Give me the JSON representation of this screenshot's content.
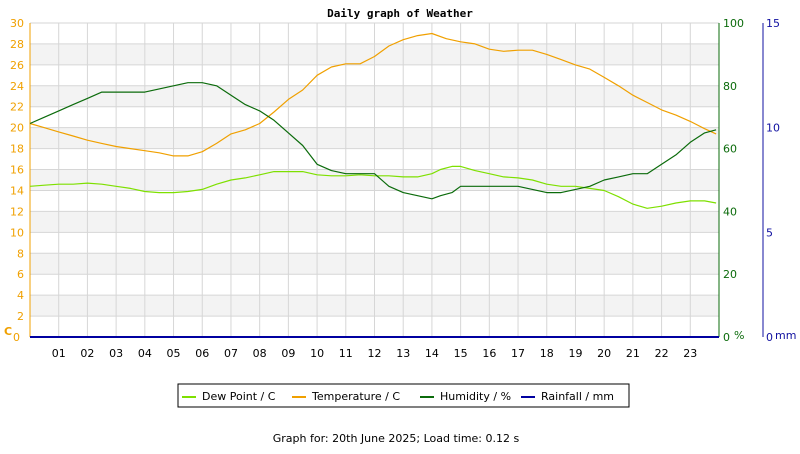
{
  "chart_data": {
    "type": "line",
    "title": "Daily graph of Weather",
    "footer": "Graph for: 20th June 2025; Load time: 0.12 s",
    "x_tick_labels": [
      "01",
      "02",
      "03",
      "04",
      "05",
      "06",
      "07",
      "08",
      "09",
      "10",
      "11",
      "12",
      "13",
      "14",
      "15",
      "16",
      "17",
      "18",
      "19",
      "20",
      "21",
      "22",
      "23"
    ],
    "xlim": [
      0,
      24
    ],
    "axes": {
      "left": {
        "unit_label": "C",
        "ticks": [
          0,
          2,
          4,
          6,
          8,
          10,
          12,
          14,
          16,
          18,
          20,
          22,
          24,
          26,
          28,
          30
        ],
        "ylim": [
          0,
          30
        ],
        "color": "#f0a000"
      },
      "humidity": {
        "unit_label": "%",
        "ticks": [
          0,
          20,
          40,
          60,
          80,
          100
        ],
        "ylim": [
          0,
          100
        ],
        "color": "#0b6b0b"
      },
      "rainfall": {
        "unit_label": "mm",
        "ticks": [
          0,
          5,
          10,
          15
        ],
        "ylim": [
          0,
          15
        ],
        "color": "#1010a0"
      }
    },
    "grid": true,
    "legend_position": "bottom-center",
    "series": [
      {
        "name": "Dew Point / C",
        "color": "#7ee000",
        "axis": "left",
        "x": [
          0,
          0.5,
          1,
          1.5,
          2,
          2.5,
          3,
          3.5,
          4,
          4.5,
          5,
          5.5,
          6,
          6.5,
          7,
          7.5,
          8,
          8.5,
          9,
          9.5,
          10,
          10.5,
          11,
          11.5,
          12,
          12.5,
          13,
          13.5,
          14,
          14.3,
          14.7,
          15,
          15.5,
          16,
          16.5,
          17,
          17.5,
          18,
          18.5,
          19,
          19.5,
          20,
          20.5,
          21,
          21.5,
          22,
          22.5,
          23,
          23.5,
          23.9
        ],
        "values": [
          14.4,
          14.5,
          14.6,
          14.6,
          14.7,
          14.6,
          14.4,
          14.2,
          13.9,
          13.8,
          13.8,
          13.9,
          14.1,
          14.6,
          15.0,
          15.2,
          15.5,
          15.8,
          15.8,
          15.8,
          15.5,
          15.4,
          15.4,
          15.5,
          15.4,
          15.4,
          15.3,
          15.3,
          15.6,
          16.0,
          16.3,
          16.3,
          15.9,
          15.6,
          15.3,
          15.2,
          15.0,
          14.6,
          14.4,
          14.4,
          14.2,
          14.0,
          13.4,
          12.7,
          12.3,
          12.5,
          12.8,
          13.0,
          13.0,
          12.8
        ]
      },
      {
        "name": "Temperature / C",
        "color": "#f0a000",
        "axis": "left",
        "x": [
          0,
          0.5,
          1,
          1.5,
          2,
          2.5,
          3,
          3.5,
          4,
          4.5,
          5,
          5.5,
          6,
          6.5,
          7,
          7.5,
          8,
          8.5,
          9,
          9.5,
          10,
          10.5,
          11,
          11.5,
          12,
          12.5,
          13,
          13.5,
          14,
          14.5,
          15,
          15.5,
          16,
          16.5,
          17,
          17.5,
          18,
          18.5,
          19,
          19.5,
          20,
          20.5,
          21,
          21.5,
          22,
          22.5,
          23,
          23.5,
          23.9
        ],
        "values": [
          20.4,
          20.0,
          19.6,
          19.2,
          18.8,
          18.5,
          18.2,
          18.0,
          17.8,
          17.6,
          17.3,
          17.3,
          17.7,
          18.5,
          19.4,
          19.8,
          20.4,
          21.5,
          22.7,
          23.6,
          25.0,
          25.8,
          26.1,
          26.1,
          26.8,
          27.8,
          28.4,
          28.8,
          29.0,
          28.5,
          28.2,
          28.0,
          27.5,
          27.3,
          27.4,
          27.4,
          27.0,
          26.5,
          26.0,
          25.6,
          24.8,
          24.0,
          23.1,
          22.4,
          21.7,
          21.2,
          20.6,
          19.9,
          19.4
        ]
      },
      {
        "name": "Humidity / %",
        "color": "#0b6b0b",
        "axis": "humidity",
        "x": [
          0,
          0.5,
          1,
          1.5,
          2,
          2.5,
          3,
          3.5,
          4,
          4.5,
          5,
          5.5,
          6,
          6.5,
          7,
          7.5,
          8,
          8.5,
          9,
          9.5,
          10,
          10.5,
          11,
          11.5,
          12,
          12.5,
          13,
          13.5,
          14,
          14.3,
          14.7,
          15,
          15.5,
          16,
          16.5,
          17,
          17.5,
          18,
          18.5,
          19,
          19.5,
          20,
          20.5,
          21,
          21.5,
          22,
          22.5,
          23,
          23.5,
          23.9
        ],
        "values": [
          68,
          70,
          72,
          74,
          76,
          78,
          78,
          78,
          78,
          79,
          80,
          81,
          81,
          80,
          77,
          74,
          72,
          69,
          65,
          61,
          55,
          53,
          52,
          52,
          52,
          48,
          46,
          45,
          44,
          45,
          46,
          48,
          48,
          48,
          48,
          48,
          47,
          46,
          46,
          47,
          48,
          50,
          51,
          52,
          52,
          55,
          58,
          62,
          65,
          66
        ]
      },
      {
        "name": "Rainfall / mm",
        "color": "#0000a0",
        "axis": "rainfall",
        "x": [
          0,
          23.9
        ],
        "values": [
          0,
          0
        ]
      }
    ]
  }
}
